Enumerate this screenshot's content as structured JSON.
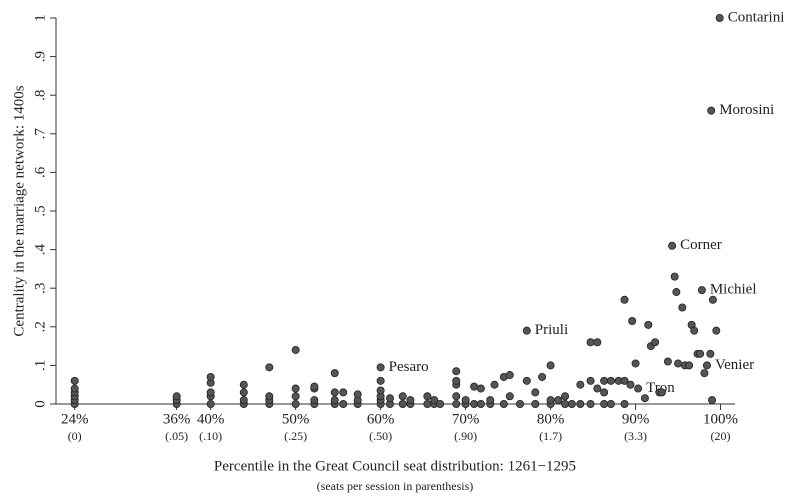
{
  "chart_data": {
    "type": "scatter",
    "x_label": "Percentile in the Great Council seat distribution: 1261−1295",
    "x_sublabel": "(seats per session in parenthesis)",
    "y_label": "Centrality in the marriage network: 1400s",
    "color": "#555555",
    "xlim": [
      21.8,
      101.7
    ],
    "ylim": [
      0,
      1
    ],
    "xticks": [
      {
        "value": 24,
        "label": "24%"
      },
      {
        "value": 36,
        "label": "36%"
      },
      {
        "value": 40,
        "label": "40%"
      },
      {
        "value": 50,
        "label": "50%"
      },
      {
        "value": 60,
        "label": "60%"
      },
      {
        "value": 70,
        "label": "70%"
      },
      {
        "value": 80,
        "label": "80%"
      },
      {
        "value": 90,
        "label": "90%"
      },
      {
        "value": 100,
        "label": "100%"
      }
    ],
    "xtick_sublabels": [
      "(0)",
      "(.05)",
      "(.10)",
      "(.25)",
      "(.50)",
      "(.90)",
      "(1.7)",
      "(3.3)",
      "(20)"
    ],
    "yticks": [
      0,
      {
        "value": 0.1,
        "label": ".1"
      },
      {
        "value": 0.2,
        "label": ".2"
      },
      {
        "value": 0.3,
        "label": ".3"
      },
      {
        "value": 0.4,
        "label": ".4"
      },
      {
        "value": 0.5,
        "label": ".5"
      },
      {
        "value": 0.6,
        "label": ".6"
      },
      {
        "value": 0.7,
        "label": ".7"
      },
      {
        "value": 0.8,
        "label": ".8"
      },
      {
        "value": 0.9,
        "label": ".9"
      },
      1
    ],
    "x": [
      24,
      24,
      24,
      24,
      24,
      24,
      36,
      36,
      36,
      40,
      40,
      40,
      40,
      40,
      43.9,
      43.9,
      43.9,
      43.9,
      46.9,
      46.9,
      46.9,
      46.9,
      50,
      50,
      50,
      50,
      52.2,
      52.2,
      52.2,
      52.2,
      54.6,
      54.6,
      54.6,
      54.6,
      55.6,
      55.6,
      57.3,
      57.3,
      57.3,
      60,
      60,
      60,
      60,
      60,
      60,
      61.1,
      61.1,
      62.6,
      62.6,
      63.5,
      63.5,
      65.5,
      65.5,
      66.3,
      66.3,
      67,
      68.9,
      68.9,
      68.9,
      68.9,
      68.9,
      70,
      70,
      71,
      71,
      71.8,
      71.8,
      72.9,
      72.9,
      73.4,
      74.5,
      74.5,
      75.2,
      75.2,
      76.4,
      77.2,
      77.2,
      78.2,
      78.2,
      79,
      80,
      80,
      80,
      80.9,
      81.7,
      81.7,
      82.5,
      83.5,
      83.5,
      84.7,
      84.7,
      84.7,
      85.5,
      85.5,
      86.3,
      86.3,
      86.3,
      87.1,
      87.1,
      88,
      88.7,
      88.7,
      88.7,
      89.4,
      89.6,
      90.0,
      90.3,
      91.1,
      91.5,
      91.8,
      92.3,
      92.8,
      93.1,
      93.8,
      94.3,
      94.6,
      94.8,
      95.0,
      95.5,
      95.8,
      96.3,
      96.6,
      96.9,
      97.3,
      97.6,
      97.8,
      98.1,
      98.4,
      98.8,
      98.9,
      99.1,
      99.5,
      99.9,
      99.0
    ],
    "values": [
      0,
      0.01,
      0.02,
      0.03,
      0.04,
      0.06,
      0,
      0.01,
      0.02,
      0,
      0.02,
      0.03,
      0.055,
      0.07,
      0,
      0.01,
      0.03,
      0.05,
      0,
      0.01,
      0.02,
      0.095,
      0,
      0.02,
      0.04,
      0.14,
      0,
      0.01,
      0.04,
      0.045,
      0,
      0.01,
      0.03,
      0.08,
      0,
      0.03,
      0,
      0.01,
      0.025,
      0,
      0.01,
      0.02,
      0.035,
      0.06,
      0.095,
      0,
      0.015,
      0,
      0.02,
      0,
      0.01,
      0,
      0.02,
      0,
      0.01,
      0,
      0,
      0.02,
      0.05,
      0.06,
      0.085,
      0,
      0.01,
      0,
      0.045,
      0,
      0.04,
      0,
      0.01,
      0.05,
      0,
      0.07,
      0.02,
      0.075,
      0,
      0.06,
      0.19,
      0,
      0.03,
      0.07,
      0,
      0.01,
      0.1,
      0.01,
      0,
      0.02,
      0,
      0,
      0.05,
      0,
      0.06,
      0.16,
      0.04,
      0.16,
      0,
      0.03,
      0.06,
      0,
      0.06,
      0.06,
      0,
      0.06,
      0.27,
      0.05,
      0.215,
      0.105,
      0.04,
      0.015,
      0.205,
      0.15,
      0.16,
      0.03,
      0.03,
      0.11,
      0.41,
      0.33,
      0.29,
      0.105,
      0.25,
      0.1,
      0.1,
      0.205,
      0.19,
      0.13,
      0.13,
      0.295,
      0.08,
      0.1,
      0.13,
      0.76,
      0.27,
      0.19,
      1,
      0.01
    ],
    "point_labels": [
      null,
      null,
      null,
      null,
      null,
      null,
      null,
      null,
      null,
      null,
      null,
      null,
      null,
      null,
      null,
      null,
      null,
      null,
      null,
      null,
      null,
      null,
      null,
      null,
      null,
      null,
      null,
      null,
      null,
      null,
      null,
      null,
      null,
      null,
      null,
      null,
      null,
      null,
      null,
      null,
      null,
      null,
      null,
      null,
      "Pesaro",
      null,
      null,
      null,
      null,
      null,
      null,
      null,
      null,
      null,
      null,
      null,
      null,
      null,
      null,
      null,
      null,
      null,
      null,
      null,
      null,
      null,
      null,
      null,
      null,
      null,
      null,
      null,
      null,
      null,
      null,
      null,
      "Priuli",
      null,
      null,
      null,
      null,
      null,
      null,
      null,
      null,
      null,
      null,
      null,
      null,
      null,
      null,
      null,
      null,
      null,
      null,
      null,
      null,
      null,
      null,
      null,
      null,
      null,
      null,
      null,
      null,
      null,
      "Tron",
      null,
      null,
      null,
      null,
      null,
      null,
      null,
      "Corner",
      null,
      null,
      null,
      null,
      null,
      null,
      null,
      null,
      null,
      null,
      "Michiel",
      null,
      "Venier",
      null,
      "Morosini",
      null,
      null,
      "Contarini",
      null
    ]
  }
}
